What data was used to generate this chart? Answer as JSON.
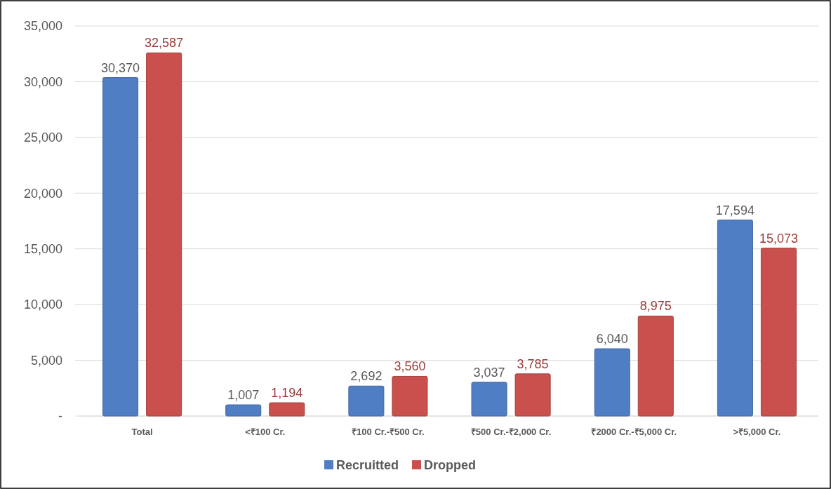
{
  "chart_data": {
    "type": "bar",
    "categories": [
      "Total",
      "<₹100 Cr.",
      "₹100 Cr.-₹500 Cr.",
      "₹500 Cr.-₹2,000 Cr.",
      "₹2000 Cr.-₹5,000 Cr.",
      ">₹5,000 Cr."
    ],
    "series": [
      {
        "name": "Recruitted",
        "color": "#4f7ec4",
        "values": [
          30370,
          1007,
          2692,
          3037,
          6040,
          17594
        ],
        "value_labels": [
          "30,370",
          "1,007",
          "2,692",
          "3,037",
          "6,040",
          "17,594"
        ]
      },
      {
        "name": "Dropped",
        "color": "#c9504c",
        "values": [
          32587,
          1194,
          3560,
          3785,
          8975,
          15073
        ],
        "value_labels": [
          "32,587",
          "1,194",
          "3,560",
          "3,785",
          "8,975",
          "15,073"
        ]
      }
    ],
    "ylim": [
      0,
      35000
    ],
    "yticks": [
      {
        "value": 0,
        "label": "-"
      },
      {
        "value": 5000,
        "label": "5,000"
      },
      {
        "value": 10000,
        "label": "10,000"
      },
      {
        "value": 15000,
        "label": "15,000"
      },
      {
        "value": 20000,
        "label": "20,000"
      },
      {
        "value": 25000,
        "label": "25,000"
      },
      {
        "value": 30000,
        "label": "30,000"
      },
      {
        "value": 35000,
        "label": "35,000"
      }
    ],
    "grid": "y",
    "legend": "bottom"
  }
}
